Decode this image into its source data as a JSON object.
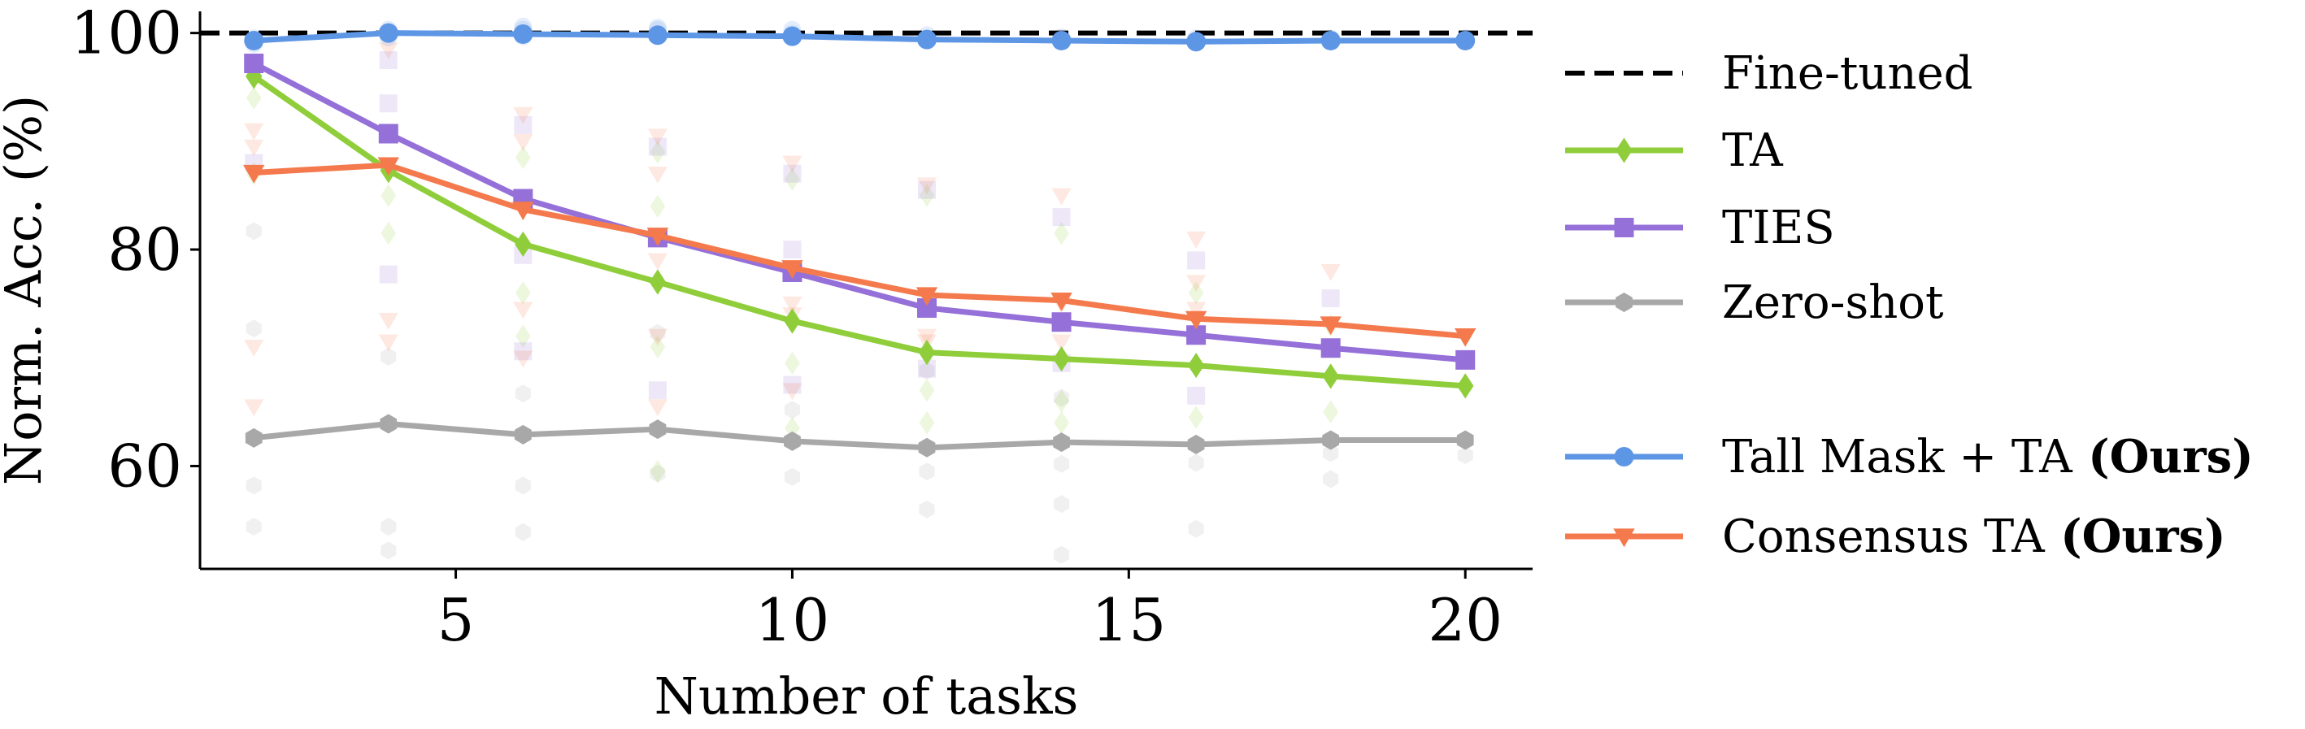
{
  "chart_data": {
    "type": "line",
    "xlabel": "Number of tasks",
    "ylabel": "Norm. Acc. (%)",
    "xlim": [
      1.2,
      21
    ],
    "ylim": [
      50.5,
      102
    ],
    "x_ticks": [
      {
        "value": 5,
        "label": "5"
      },
      {
        "value": 10,
        "label": "10"
      },
      {
        "value": 15,
        "label": "15"
      },
      {
        "value": 20,
        "label": "20"
      }
    ],
    "y_ticks": [
      {
        "value": 60,
        "label": "60"
      },
      {
        "value": 80,
        "label": "80"
      },
      {
        "value": 100,
        "label": "100"
      }
    ],
    "grid": false,
    "legend_position": "right",
    "x": [
      2,
      4,
      6,
      8,
      10,
      12,
      14,
      16,
      18,
      20
    ],
    "reference_line": {
      "name": "Fine-tuned",
      "y": 100,
      "color": "#000000",
      "style": "dashed"
    },
    "series": [
      {
        "name": "Zero-shot",
        "color": "#a8a8a8",
        "marker": "hexagon",
        "values": [
          62.6,
          63.9,
          62.9,
          63.4,
          62.3,
          61.7,
          62.2,
          62.0,
          62.4,
          62.4
        ]
      },
      {
        "name": "TA",
        "color": "#8fce3a",
        "marker": "diamond",
        "values": [
          96.0,
          87.3,
          80.5,
          77.0,
          73.4,
          70.5,
          69.9,
          69.3,
          68.3,
          67.4
        ]
      },
      {
        "name": "TIES",
        "color": "#9570d8",
        "marker": "square",
        "values": [
          97.2,
          90.7,
          84.7,
          81.1,
          77.9,
          74.6,
          73.3,
          72.1,
          70.9,
          69.8
        ]
      },
      {
        "name": "Consensus TA",
        "name_suffix": "(Ours)",
        "color": "#f47a4d",
        "marker": "triangle-down",
        "values": [
          87.1,
          87.8,
          83.7,
          81.3,
          78.3,
          75.8,
          75.3,
          73.6,
          73.1,
          72.0
        ]
      },
      {
        "name": "Tall Mask + TA",
        "name_suffix": "(Ours)",
        "color": "#5e96e6",
        "marker": "circle",
        "values": [
          99.3,
          100.0,
          99.9,
          99.8,
          99.7,
          99.4,
          99.3,
          99.2,
          99.3,
          99.3
        ]
      }
    ],
    "faint_points": [
      {
        "series": "Zero-shot",
        "points": [
          [
            2,
            81.7
          ],
          [
            2,
            72.7
          ],
          [
            2,
            58.2
          ],
          [
            2,
            54.4
          ],
          [
            4,
            70.1
          ],
          [
            4,
            54.4
          ],
          [
            4,
            52.2
          ],
          [
            6,
            66.7
          ],
          [
            6,
            58.2
          ],
          [
            6,
            53.9
          ],
          [
            8,
            72.3
          ],
          [
            8,
            59.3
          ],
          [
            10,
            65.2
          ],
          [
            10,
            59.0
          ],
          [
            12,
            68.8
          ],
          [
            12,
            59.5
          ],
          [
            12,
            56.0
          ],
          [
            14,
            66.3
          ],
          [
            14,
            60.2
          ],
          [
            14,
            56.5
          ],
          [
            14,
            51.8
          ],
          [
            16,
            60.3
          ],
          [
            16,
            54.2
          ],
          [
            18,
            61.2
          ],
          [
            18,
            58.8
          ],
          [
            20,
            61.0
          ]
        ]
      },
      {
        "series": "TA",
        "points": [
          [
            2,
            94.0
          ],
          [
            2,
            87.0
          ],
          [
            4,
            85.0
          ],
          [
            4,
            81.5
          ],
          [
            6,
            88.5
          ],
          [
            6,
            76.0
          ],
          [
            6,
            72.0
          ],
          [
            8,
            89.0
          ],
          [
            8,
            84.0
          ],
          [
            8,
            71.0
          ],
          [
            8,
            59.5
          ],
          [
            10,
            86.5
          ],
          [
            10,
            69.5
          ],
          [
            10,
            63.5
          ],
          [
            12,
            85.0
          ],
          [
            12,
            67.0
          ],
          [
            12,
            64.0
          ],
          [
            14,
            81.5
          ],
          [
            14,
            66.0
          ],
          [
            14,
            64.0
          ],
          [
            16,
            76.0
          ],
          [
            16,
            64.5
          ],
          [
            18,
            73.0
          ],
          [
            18,
            65.0
          ]
        ]
      },
      {
        "series": "TIES",
        "points": [
          [
            2,
            88.0
          ],
          [
            4,
            97.5
          ],
          [
            4,
            93.5
          ],
          [
            4,
            77.7
          ],
          [
            6,
            91.5
          ],
          [
            6,
            79.5
          ],
          [
            6,
            70.6
          ],
          [
            8,
            89.5
          ],
          [
            8,
            67.0
          ],
          [
            10,
            87.0
          ],
          [
            10,
            80.0
          ],
          [
            10,
            67.5
          ],
          [
            12,
            85.5
          ],
          [
            12,
            69.0
          ],
          [
            14,
            83.0
          ],
          [
            14,
            69.5
          ],
          [
            16,
            79.0
          ],
          [
            16,
            66.5
          ],
          [
            18,
            75.5
          ]
        ]
      },
      {
        "series": "Consensus TA",
        "points": [
          [
            2,
            91.0
          ],
          [
            2,
            89.5
          ],
          [
            2,
            71.0
          ],
          [
            2,
            65.5
          ],
          [
            4,
            98.5
          ],
          [
            4,
            73.5
          ],
          [
            4,
            71.5
          ],
          [
            6,
            92.5
          ],
          [
            6,
            90.0
          ],
          [
            6,
            74.5
          ],
          [
            6,
            70.0
          ],
          [
            8,
            90.5
          ],
          [
            8,
            87.0
          ],
          [
            8,
            79.0
          ],
          [
            8,
            72.0
          ],
          [
            8,
            65.5
          ],
          [
            10,
            88.0
          ],
          [
            10,
            75.0
          ],
          [
            10,
            74.0
          ],
          [
            10,
            67.0
          ],
          [
            12,
            86.0
          ],
          [
            12,
            72.0
          ],
          [
            12,
            71.5
          ],
          [
            14,
            85.0
          ],
          [
            14,
            75.0
          ],
          [
            14,
            71.5
          ],
          [
            16,
            81.0
          ],
          [
            16,
            77.0
          ],
          [
            16,
            74.5
          ],
          [
            18,
            78.0
          ],
          [
            18,
            73.0
          ]
        ]
      },
      {
        "series": "Tall Mask + TA",
        "points": [
          [
            2,
            99.5
          ],
          [
            2,
            99.0
          ],
          [
            4,
            100.3
          ],
          [
            4,
            99.6
          ],
          [
            6,
            100.6
          ],
          [
            6,
            100.3
          ],
          [
            6,
            99.7
          ],
          [
            8,
            100.5
          ],
          [
            8,
            100.3
          ],
          [
            10,
            100.3
          ],
          [
            10,
            99.9
          ],
          [
            12,
            99.8
          ],
          [
            14,
            99.6
          ],
          [
            16,
            99.5
          ],
          [
            18,
            99.5
          ],
          [
            20,
            99.5
          ]
        ]
      }
    ]
  }
}
